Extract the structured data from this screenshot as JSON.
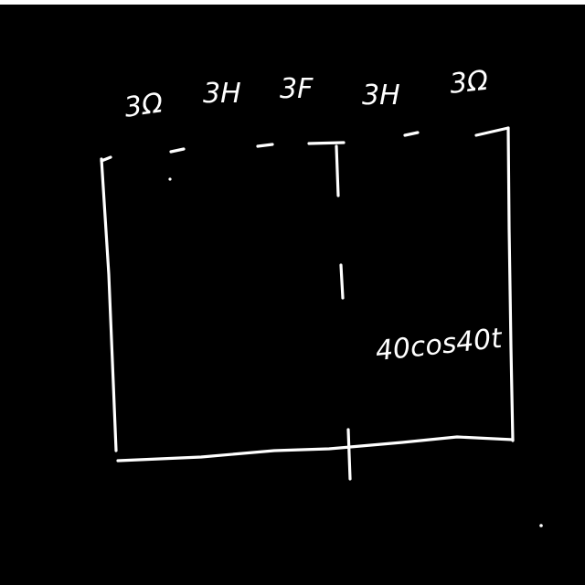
{
  "diagram": {
    "components": [
      {
        "label": "3Ω"
      },
      {
        "label": "3H"
      },
      {
        "label": "3F"
      },
      {
        "label": "3H"
      },
      {
        "label": "3Ω"
      }
    ],
    "source": {
      "label": "40cos40t"
    }
  }
}
